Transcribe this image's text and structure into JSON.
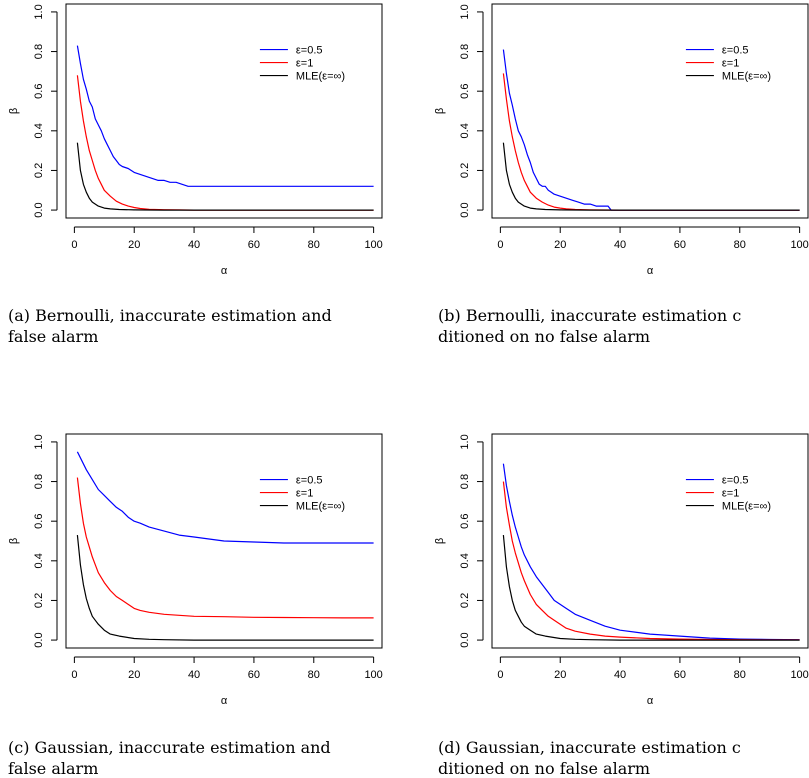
{
  "chart_data": [
    {
      "type": "line",
      "caption": [
        "(a) Bernoulli, inaccurate estimation and",
        "false alarm"
      ],
      "xlabel": "α",
      "ylabel": "β",
      "xlim": [
        0,
        100
      ],
      "ylim": [
        0,
        1
      ],
      "xticks": [
        "0",
        "20",
        "40",
        "60",
        "80",
        "100"
      ],
      "yticks": [
        "0.0",
        "0.2",
        "0.4",
        "0.6",
        "0.8",
        "1.0"
      ],
      "legend_position": "top-right",
      "series": [
        {
          "name": "ε=0.5",
          "color": "#0000ff",
          "x": [
            1,
            2,
            3,
            4,
            5,
            6,
            7,
            8,
            9,
            10,
            11,
            12,
            13,
            14,
            15,
            16,
            18,
            20,
            22,
            24,
            26,
            28,
            30,
            32,
            34,
            36,
            38,
            40,
            50,
            60,
            70,
            80,
            90,
            100
          ],
          "y": [
            0.83,
            0.74,
            0.66,
            0.61,
            0.55,
            0.52,
            0.46,
            0.43,
            0.4,
            0.36,
            0.33,
            0.3,
            0.27,
            0.25,
            0.23,
            0.22,
            0.21,
            0.19,
            0.18,
            0.17,
            0.16,
            0.15,
            0.15,
            0.14,
            0.14,
            0.13,
            0.12,
            0.12,
            0.12,
            0.12,
            0.12,
            0.12,
            0.12,
            0.12
          ]
        },
        {
          "name": "ε=1",
          "color": "#ff0000",
          "x": [
            1,
            2,
            3,
            4,
            5,
            6,
            7,
            8,
            9,
            10,
            12,
            14,
            16,
            18,
            20,
            22,
            25,
            30,
            35,
            40,
            50,
            60,
            70,
            80,
            90,
            100
          ],
          "y": [
            0.68,
            0.55,
            0.45,
            0.37,
            0.3,
            0.25,
            0.2,
            0.16,
            0.13,
            0.1,
            0.07,
            0.045,
            0.03,
            0.02,
            0.013,
            0.008,
            0.004,
            0.002,
            0.001,
            0.0,
            0.0,
            0.0,
            0.0,
            0.0,
            0.0,
            0.0
          ]
        },
        {
          "name": "MLE(ε=∞)",
          "color": "#000000",
          "x": [
            1,
            2,
            3,
            4,
            5,
            6,
            7,
            8,
            10,
            12,
            15,
            20,
            30,
            40,
            60,
            80,
            100
          ],
          "y": [
            0.34,
            0.2,
            0.13,
            0.09,
            0.06,
            0.04,
            0.03,
            0.02,
            0.01,
            0.006,
            0.003,
            0.001,
            0.0,
            0.0,
            0.0,
            0.0,
            0.0
          ]
        }
      ]
    },
    {
      "type": "line",
      "caption": [
        "(b) Bernoulli, inaccurate estimation c",
        "ditioned on no false alarm"
      ],
      "xlabel": "α",
      "ylabel": "β",
      "xlim": [
        0,
        100
      ],
      "ylim": [
        0,
        1
      ],
      "xticks": [
        "0",
        "20",
        "40",
        "60",
        "80",
        "100"
      ],
      "yticks": [
        "0.0",
        "0.2",
        "0.4",
        "0.6",
        "0.8",
        "1.0"
      ],
      "legend_position": "top-right",
      "series": [
        {
          "name": "ε=0.5",
          "color": "#0000ff",
          "x": [
            1,
            2,
            3,
            4,
            5,
            6,
            7,
            8,
            9,
            10,
            11,
            12,
            13,
            14,
            15,
            16,
            17,
            18,
            20,
            22,
            24,
            26,
            28,
            30,
            32,
            34,
            36,
            37,
            40,
            60,
            80,
            100
          ],
          "y": [
            0.81,
            0.69,
            0.59,
            0.53,
            0.46,
            0.4,
            0.37,
            0.33,
            0.28,
            0.24,
            0.19,
            0.16,
            0.13,
            0.12,
            0.12,
            0.1,
            0.09,
            0.08,
            0.07,
            0.06,
            0.05,
            0.04,
            0.03,
            0.03,
            0.02,
            0.02,
            0.02,
            0.0,
            0.0,
            0.0,
            0.0,
            0.0
          ]
        },
        {
          "name": "ε=1",
          "color": "#ff0000",
          "x": [
            1,
            2,
            3,
            4,
            5,
            6,
            7,
            8,
            9,
            10,
            12,
            14,
            16,
            18,
            20,
            22,
            25,
            30,
            40,
            60,
            80,
            100
          ],
          "y": [
            0.69,
            0.56,
            0.45,
            0.37,
            0.3,
            0.24,
            0.19,
            0.15,
            0.12,
            0.09,
            0.06,
            0.04,
            0.025,
            0.015,
            0.01,
            0.006,
            0.003,
            0.001,
            0.0,
            0.0,
            0.0,
            0.0
          ]
        },
        {
          "name": "MLE(ε=∞)",
          "color": "#000000",
          "x": [
            1,
            2,
            3,
            4,
            5,
            6,
            7,
            8,
            10,
            12,
            15,
            20,
            30,
            40,
            60,
            80,
            100
          ],
          "y": [
            0.34,
            0.2,
            0.13,
            0.09,
            0.06,
            0.04,
            0.03,
            0.02,
            0.01,
            0.006,
            0.003,
            0.001,
            0.0,
            0.0,
            0.0,
            0.0,
            0.0
          ]
        }
      ]
    },
    {
      "type": "line",
      "caption": [
        "(c) Gaussian, inaccurate estimation and",
        "false alarm"
      ],
      "xlabel": "α",
      "ylabel": "β",
      "xlim": [
        0,
        100
      ],
      "ylim": [
        0,
        1
      ],
      "xticks": [
        "0",
        "20",
        "40",
        "60",
        "80",
        "100"
      ],
      "yticks": [
        "0.0",
        "0.2",
        "0.4",
        "0.6",
        "0.8",
        "1.0"
      ],
      "legend_position": "top-right",
      "series": [
        {
          "name": "ε=0.5",
          "color": "#0000ff",
          "x": [
            1,
            2,
            4,
            6,
            8,
            10,
            12,
            14,
            16,
            18,
            20,
            22,
            25,
            30,
            35,
            40,
            45,
            50,
            60,
            70,
            80,
            90,
            100
          ],
          "y": [
            0.95,
            0.92,
            0.86,
            0.81,
            0.76,
            0.73,
            0.7,
            0.67,
            0.65,
            0.62,
            0.6,
            0.59,
            0.57,
            0.55,
            0.53,
            0.52,
            0.51,
            0.5,
            0.495,
            0.49,
            0.49,
            0.49,
            0.49
          ]
        },
        {
          "name": "ε=1",
          "color": "#ff0000",
          "x": [
            1,
            2,
            3,
            4,
            5,
            6,
            7,
            8,
            10,
            12,
            14,
            16,
            18,
            20,
            22,
            25,
            30,
            35,
            40,
            50,
            60,
            70,
            80,
            90,
            100
          ],
          "y": [
            0.82,
            0.69,
            0.59,
            0.52,
            0.47,
            0.42,
            0.38,
            0.34,
            0.29,
            0.25,
            0.22,
            0.2,
            0.18,
            0.16,
            0.15,
            0.14,
            0.13,
            0.125,
            0.12,
            0.118,
            0.115,
            0.114,
            0.113,
            0.112,
            0.112
          ]
        },
        {
          "name": "MLE(ε=∞)",
          "color": "#000000",
          "x": [
            1,
            2,
            3,
            4,
            5,
            6,
            7,
            8,
            10,
            12,
            15,
            20,
            25,
            30,
            40,
            60,
            80,
            100
          ],
          "y": [
            0.53,
            0.38,
            0.28,
            0.21,
            0.16,
            0.12,
            0.1,
            0.08,
            0.05,
            0.03,
            0.02,
            0.008,
            0.004,
            0.002,
            0.0,
            0.0,
            0.0,
            0.0
          ]
        }
      ]
    },
    {
      "type": "line",
      "caption": [
        "(d) Gaussian, inaccurate estimation c",
        "ditioned on no false alarm"
      ],
      "xlabel": "α",
      "ylabel": "β",
      "xlim": [
        0,
        100
      ],
      "ylim": [
        0,
        1
      ],
      "xticks": [
        "0",
        "20",
        "40",
        "60",
        "80",
        "100"
      ],
      "yticks": [
        "0.0",
        "0.2",
        "0.4",
        "0.6",
        "0.8",
        "1.0"
      ],
      "legend_position": "top-right",
      "series": [
        {
          "name": "ε=0.5",
          "color": "#0000ff",
          "x": [
            1,
            2,
            3,
            4,
            5,
            6,
            7,
            8,
            10,
            12,
            14,
            16,
            18,
            20,
            22,
            25,
            30,
            35,
            40,
            50,
            60,
            70,
            80,
            90,
            100
          ],
          "y": [
            0.89,
            0.78,
            0.7,
            0.63,
            0.57,
            0.52,
            0.47,
            0.43,
            0.37,
            0.32,
            0.28,
            0.24,
            0.2,
            0.18,
            0.16,
            0.13,
            0.1,
            0.07,
            0.05,
            0.03,
            0.02,
            0.01,
            0.005,
            0.003,
            0.002
          ]
        },
        {
          "name": "ε=1",
          "color": "#ff0000",
          "x": [
            1,
            2,
            3,
            4,
            5,
            6,
            7,
            8,
            10,
            12,
            14,
            16,
            18,
            20,
            22,
            25,
            30,
            35,
            40,
            50,
            60,
            70,
            80,
            90,
            100
          ],
          "y": [
            0.8,
            0.67,
            0.58,
            0.5,
            0.44,
            0.39,
            0.34,
            0.3,
            0.23,
            0.18,
            0.15,
            0.12,
            0.1,
            0.08,
            0.06,
            0.045,
            0.03,
            0.02,
            0.015,
            0.008,
            0.005,
            0.003,
            0.002,
            0.001,
            0.001
          ]
        },
        {
          "name": "MLE(ε=∞)",
          "color": "#000000",
          "x": [
            1,
            2,
            3,
            4,
            5,
            6,
            7,
            8,
            10,
            12,
            15,
            20,
            25,
            30,
            40,
            60,
            80,
            100
          ],
          "y": [
            0.53,
            0.37,
            0.27,
            0.2,
            0.15,
            0.12,
            0.09,
            0.07,
            0.05,
            0.03,
            0.02,
            0.008,
            0.004,
            0.002,
            0.0,
            0.0,
            0.0,
            0.0
          ]
        }
      ]
    }
  ]
}
